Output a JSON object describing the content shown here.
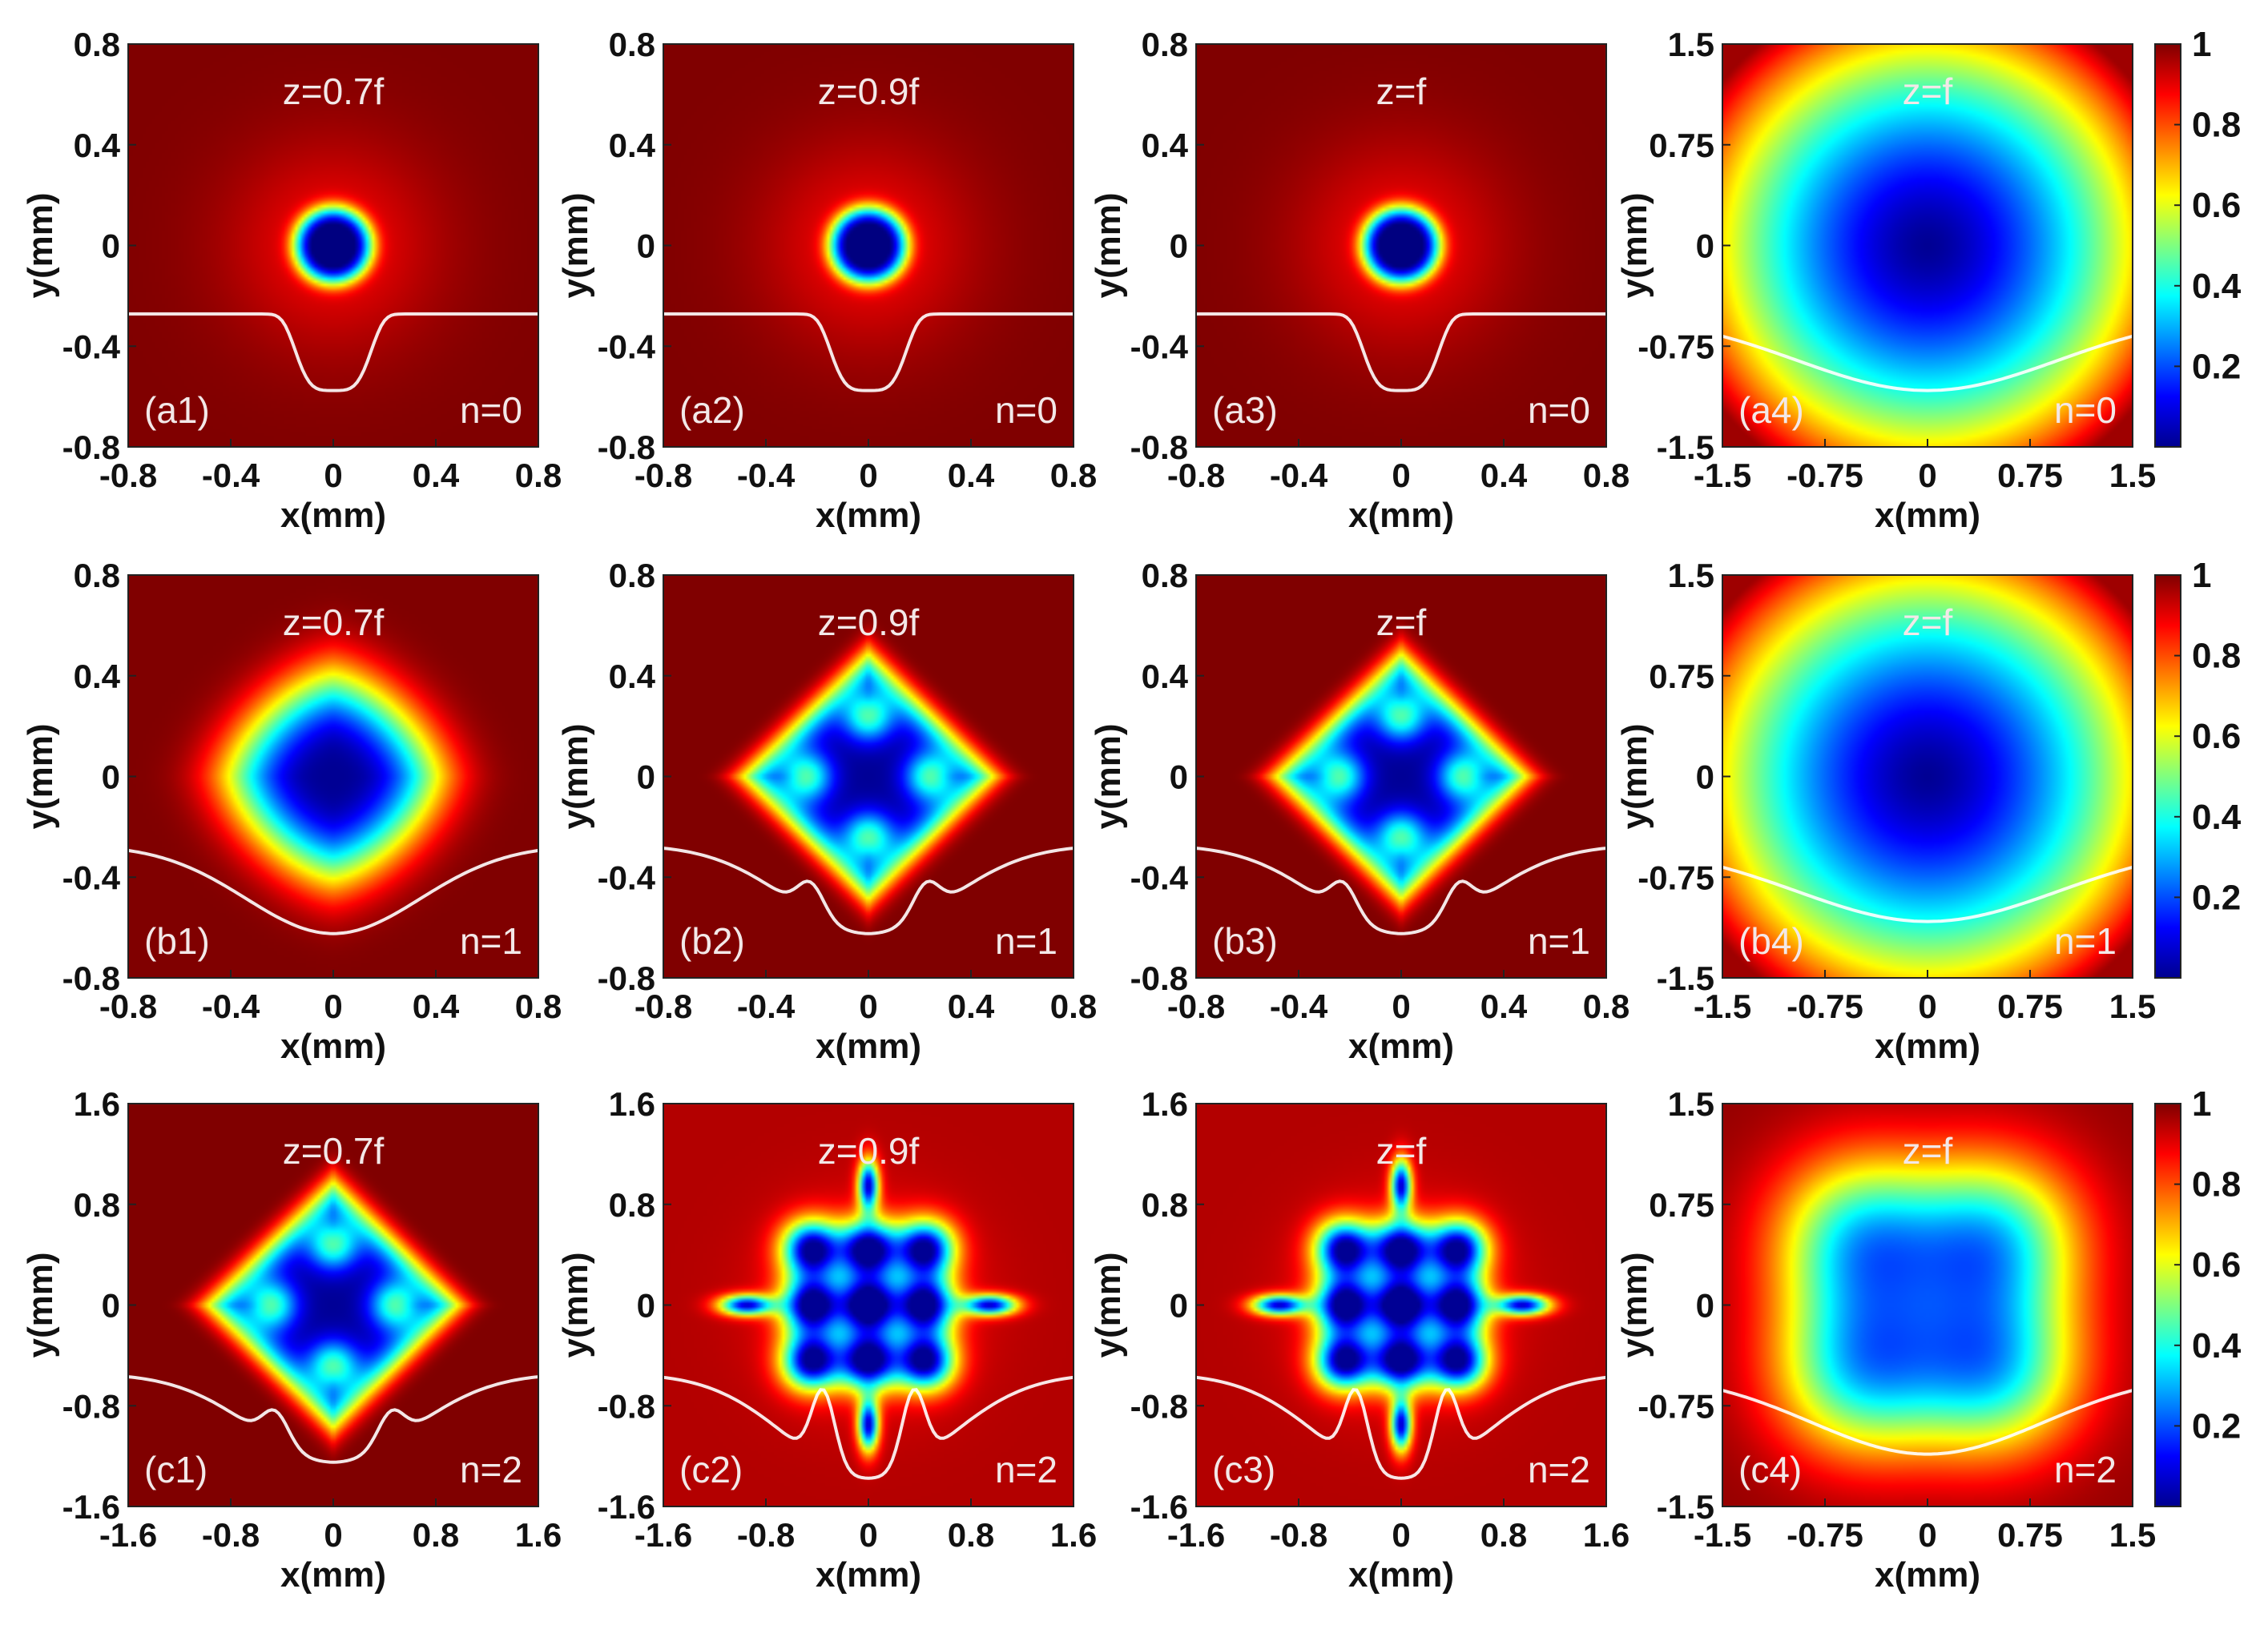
{
  "chart_data": {
    "type": "heatmap",
    "colormap": "jet",
    "colorbar": {
      "min": 0,
      "max": 1,
      "ticks": [
        "0.2",
        "0.4",
        "0.6",
        "0.8",
        "1"
      ]
    },
    "axis_unit_x": "x(mm)",
    "axis_unit_y": "y(mm)",
    "panels": [
      {
        "id": "(a1)",
        "z_label": "z=0.7f",
        "n_label": "n=0",
        "range": 0.8,
        "pattern": "n0",
        "spot": 0.12,
        "xticks": [
          "-0.8",
          "-0.4",
          "0",
          "0.4",
          "0.8"
        ],
        "yticks": [
          "0.8",
          "0.4",
          "0",
          "-0.4",
          "-0.8"
        ]
      },
      {
        "id": "(a2)",
        "z_label": "z=0.9f",
        "n_label": "n=0",
        "range": 0.8,
        "pattern": "n0",
        "spot": 0.12,
        "xticks": [
          "-0.8",
          "-0.4",
          "0",
          "0.4",
          "0.8"
        ],
        "yticks": [
          "0.8",
          "0.4",
          "0",
          "-0.4",
          "-0.8"
        ]
      },
      {
        "id": "(a3)",
        "z_label": "z=f",
        "n_label": "n=0",
        "range": 0.8,
        "pattern": "n0",
        "spot": 0.12,
        "xticks": [
          "-0.8",
          "-0.4",
          "0",
          "0.4",
          "0.8"
        ],
        "yticks": [
          "0.8",
          "0.4",
          "0",
          "-0.4",
          "-0.8"
        ]
      },
      {
        "id": "(a4)",
        "z_label": "z=f",
        "n_label": "n=0",
        "range": 1.5,
        "pattern": "far",
        "spot": 0.12,
        "xticks": [
          "-1.5",
          "-0.75",
          "0",
          "0.75",
          "1.5"
        ],
        "yticks": [
          "1.5",
          "0.75",
          "0",
          "-0.75",
          "-1.5"
        ]
      },
      {
        "id": "(b1)",
        "z_label": "z=0.7f",
        "n_label": "n=1",
        "range": 0.8,
        "pattern": "diamond",
        "spot": 0.12,
        "xticks": [
          "-0.8",
          "-0.4",
          "0",
          "0.4",
          "0.8"
        ],
        "yticks": [
          "0.8",
          "0.4",
          "0",
          "-0.4",
          "-0.8"
        ]
      },
      {
        "id": "(b2)",
        "z_label": "z=0.9f",
        "n_label": "n=1",
        "range": 0.8,
        "pattern": "four",
        "spot": 0.12,
        "xticks": [
          "-0.8",
          "-0.4",
          "0",
          "0.4",
          "0.8"
        ],
        "yticks": [
          "0.8",
          "0.4",
          "0",
          "-0.4",
          "-0.8"
        ]
      },
      {
        "id": "(b3)",
        "z_label": "z=f",
        "n_label": "n=1",
        "range": 0.8,
        "pattern": "four",
        "spot": 0.12,
        "xticks": [
          "-0.8",
          "-0.4",
          "0",
          "0.4",
          "0.8"
        ],
        "yticks": [
          "0.8",
          "0.4",
          "0",
          "-0.4",
          "-0.8"
        ]
      },
      {
        "id": "(b4)",
        "z_label": "z=f",
        "n_label": "n=1",
        "range": 1.5,
        "pattern": "far",
        "spot": 0.12,
        "xticks": [
          "-1.5",
          "-0.75",
          "0",
          "0.75",
          "1.5"
        ],
        "yticks": [
          "1.5",
          "0.75",
          "0",
          "-0.75",
          "-1.5"
        ]
      },
      {
        "id": "(c1)",
        "z_label": "z=0.7f",
        "n_label": "n=2",
        "range": 1.6,
        "pattern": "four",
        "spot": 0.12,
        "xticks": [
          "-1.6",
          "-0.8",
          "0",
          "0.8",
          "1.6"
        ],
        "yticks": [
          "1.6",
          "0.8",
          "0",
          "-0.8",
          "-1.6"
        ]
      },
      {
        "id": "(c2)",
        "z_label": "z=0.9f",
        "n_label": "n=2",
        "range": 1.6,
        "pattern": "star",
        "spot": 0.12,
        "xticks": [
          "-1.6",
          "-0.8",
          "0",
          "0.8",
          "1.6"
        ],
        "yticks": [
          "1.6",
          "0.8",
          "0",
          "-0.8",
          "-1.6"
        ]
      },
      {
        "id": "(c3)",
        "z_label": "z=f",
        "n_label": "n=2",
        "range": 1.6,
        "pattern": "star",
        "spot": 0.12,
        "xticks": [
          "-1.6",
          "-0.8",
          "0",
          "0.8",
          "1.6"
        ],
        "yticks": [
          "1.6",
          "0.8",
          "0",
          "-0.8",
          "-1.6"
        ]
      },
      {
        "id": "(c4)",
        "z_label": "z=f",
        "n_label": "n=2",
        "range": 1.5,
        "pattern": "far4",
        "spot": 0.12,
        "xticks": [
          "-1.5",
          "-0.75",
          "0",
          "0.75",
          "1.5"
        ],
        "yticks": [
          "1.5",
          "0.75",
          "0",
          "-0.75",
          "-1.5"
        ]
      }
    ]
  }
}
